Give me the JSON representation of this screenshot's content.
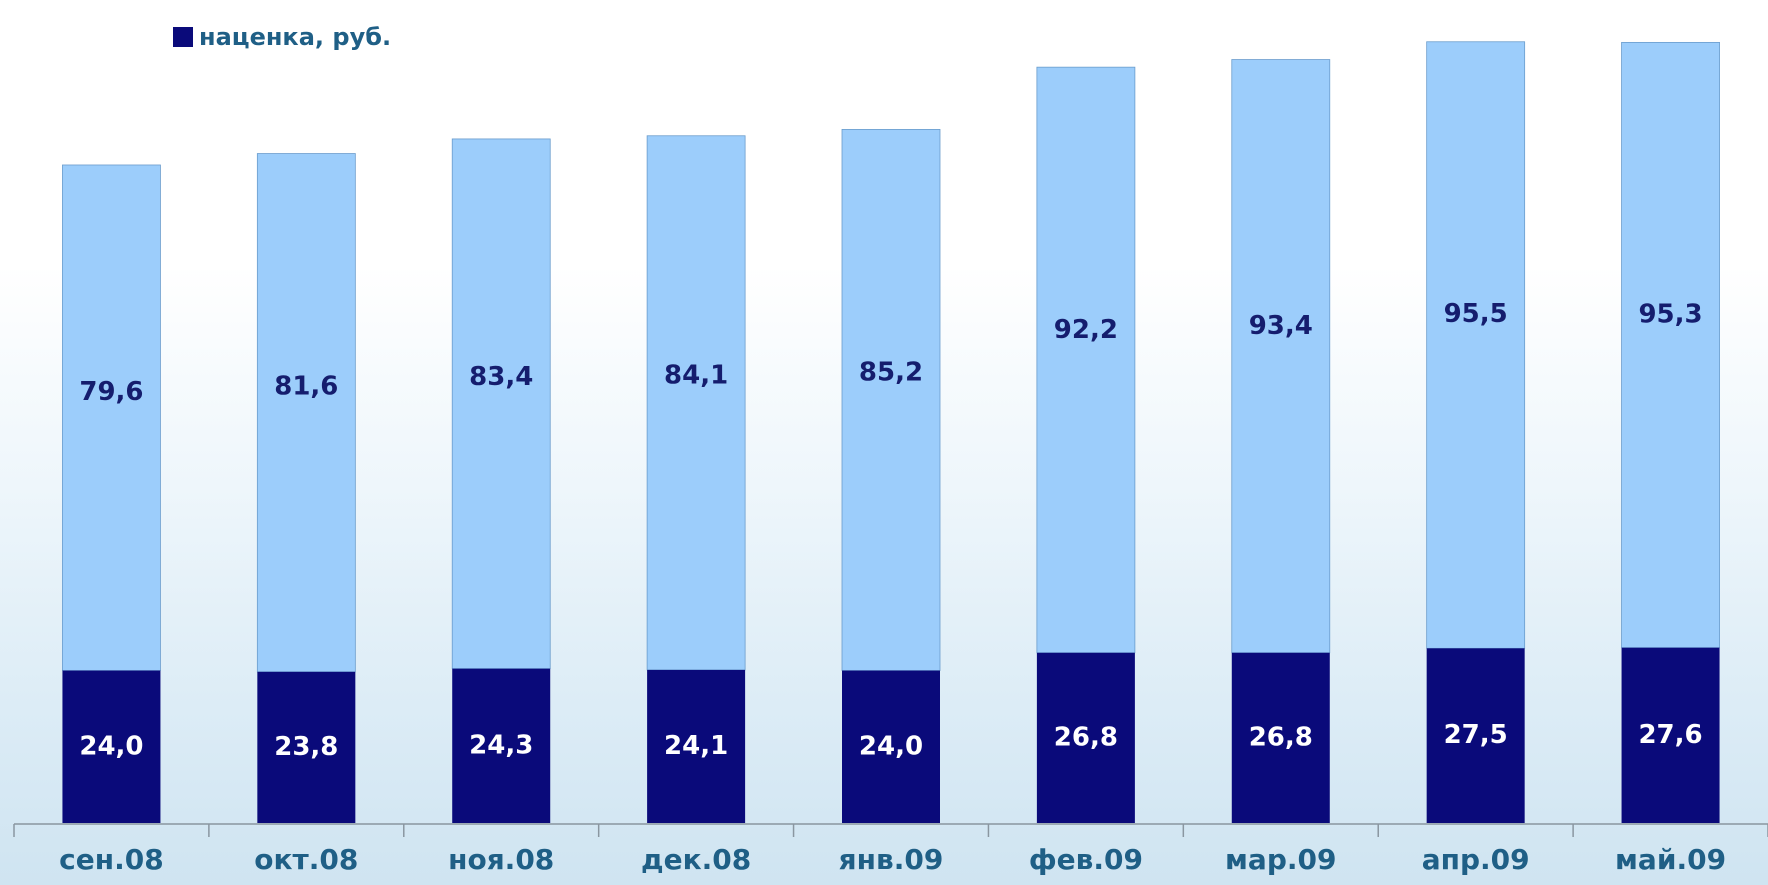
{
  "chart_data": {
    "type": "bar",
    "stacked": true,
    "categories": [
      "сен.08",
      "окт.08",
      "ноя.08",
      "дек.08",
      "янв.09",
      "фев.09",
      "мар.09",
      "апр.09",
      "май.09"
    ],
    "series": [
      {
        "name": "наценка, руб.",
        "values": [
          24.0,
          23.8,
          24.3,
          24.1,
          24.0,
          26.8,
          26.8,
          27.5,
          27.6
        ],
        "labels": [
          "24,0",
          "23,8",
          "24,3",
          "24,1",
          "24,0",
          "26,8",
          "26,8",
          "27,5",
          "27,6"
        ]
      },
      {
        "values": [
          79.6,
          81.6,
          83.4,
          84.1,
          85.2,
          92.2,
          93.4,
          95.5,
          95.3
        ],
        "labels": [
          "79,6",
          "81,6",
          "83,4",
          "84,1",
          "85,2",
          "92,2",
          "93,4",
          "95,5",
          "95,3"
        ]
      }
    ],
    "ylim": [
      0,
      128
    ],
    "grid": false,
    "legend": "top-left"
  },
  "colors": {
    "markup": "#0a0a7a",
    "upper": "#9ccdfb",
    "upper_label": "#151d6e",
    "markup_label": "#ffffff",
    "axis_label": "#1f5f86",
    "axis_line": "#8a96a0"
  }
}
